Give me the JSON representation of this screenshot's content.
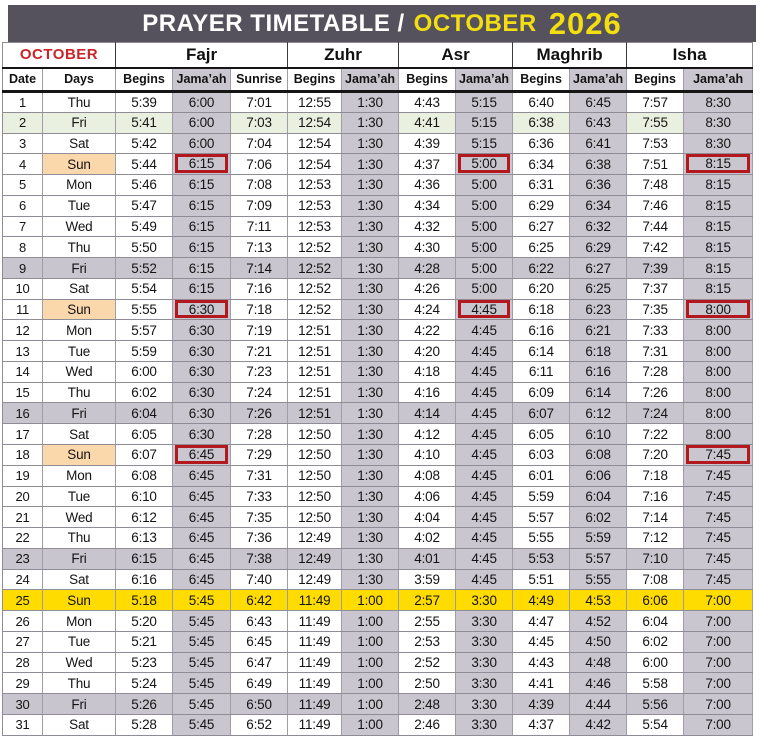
{
  "header": {
    "title_prefix": "PRAYER TIMETABLE /",
    "title_month": "OCTOBER",
    "title_year": "2026"
  },
  "colors": {
    "titlebar_bg": "#56525d",
    "title_text": "#ffffff",
    "title_accent_yellow": "#f3de10",
    "month_label_red": "#c9252b",
    "jamaah_column_gray": "#c9c6d0",
    "friday_gray": "#c8c5cf",
    "friday_green": "#e9f0e0",
    "sunday_peach": "#fbd8ac",
    "dst_row_yellow": "#ffdc00",
    "change_box_red": "#b2191f"
  },
  "table": {
    "month_label": "OCTOBER",
    "groups": [
      {
        "label": "Fajr",
        "span": 3
      },
      {
        "label": "Zuhr",
        "span": 2
      },
      {
        "label": "Asr",
        "span": 2
      },
      {
        "label": "Maghrib",
        "span": 2
      },
      {
        "label": "Isha",
        "span": 2
      }
    ],
    "sub_headers": [
      "Date",
      "Days",
      "Begins",
      "Jama’ah",
      "Sunrise",
      "Begins",
      "Jama’ah",
      "Begins",
      "Jama’ah",
      "Begins",
      "Jama’ah",
      "Begins",
      "Jama’ah"
    ],
    "jamaah_header_indices": [
      3,
      6,
      8,
      10,
      12
    ],
    "jamaah_time_indices": [
      1,
      4,
      6,
      8,
      10
    ],
    "rows": [
      {
        "date": "1",
        "day": "Thu",
        "highlight": "none",
        "boxes": [],
        "times": [
          "5:39",
          "6:00",
          "7:01",
          "12:55",
          "1:30",
          "4:43",
          "5:15",
          "6:40",
          "6:45",
          "7:57",
          "8:30"
        ]
      },
      {
        "date": "2",
        "day": "Fri",
        "highlight": "green",
        "boxes": [],
        "times": [
          "5:41",
          "6:00",
          "7:03",
          "12:54",
          "1:30",
          "4:41",
          "5:15",
          "6:38",
          "6:43",
          "7:55",
          "8:30"
        ]
      },
      {
        "date": "3",
        "day": "Sat",
        "highlight": "none",
        "boxes": [],
        "times": [
          "5:42",
          "6:00",
          "7:04",
          "12:54",
          "1:30",
          "4:39",
          "5:15",
          "6:36",
          "6:41",
          "7:53",
          "8:30"
        ]
      },
      {
        "date": "4",
        "day": "Sun",
        "highlight": "sun",
        "boxes": [
          1,
          6,
          10
        ],
        "times": [
          "5:44",
          "6:15",
          "7:06",
          "12:54",
          "1:30",
          "4:37",
          "5:00",
          "6:34",
          "6:38",
          "7:51",
          "8:15"
        ]
      },
      {
        "date": "5",
        "day": "Mon",
        "highlight": "none",
        "boxes": [],
        "times": [
          "5:46",
          "6:15",
          "7:08",
          "12:53",
          "1:30",
          "4:36",
          "5:00",
          "6:31",
          "6:36",
          "7:48",
          "8:15"
        ]
      },
      {
        "date": "6",
        "day": "Tue",
        "highlight": "none",
        "boxes": [],
        "times": [
          "5:47",
          "6:15",
          "7:09",
          "12:53",
          "1:30",
          "4:34",
          "5:00",
          "6:29",
          "6:34",
          "7:46",
          "8:15"
        ]
      },
      {
        "date": "7",
        "day": "Wed",
        "highlight": "none",
        "boxes": [],
        "times": [
          "5:49",
          "6:15",
          "7:11",
          "12:53",
          "1:30",
          "4:32",
          "5:00",
          "6:27",
          "6:32",
          "7:44",
          "8:15"
        ]
      },
      {
        "date": "8",
        "day": "Thu",
        "highlight": "none",
        "boxes": [],
        "times": [
          "5:50",
          "6:15",
          "7:13",
          "12:52",
          "1:30",
          "4:30",
          "5:00",
          "6:25",
          "6:29",
          "7:42",
          "8:15"
        ]
      },
      {
        "date": "9",
        "day": "Fri",
        "highlight": "gray",
        "boxes": [],
        "times": [
          "5:52",
          "6:15",
          "7:14",
          "12:52",
          "1:30",
          "4:28",
          "5:00",
          "6:22",
          "6:27",
          "7:39",
          "8:15"
        ]
      },
      {
        "date": "10",
        "day": "Sat",
        "highlight": "none",
        "boxes": [],
        "times": [
          "5:54",
          "6:15",
          "7:16",
          "12:52",
          "1:30",
          "4:26",
          "5:00",
          "6:20",
          "6:25",
          "7:37",
          "8:15"
        ]
      },
      {
        "date": "11",
        "day": "Sun",
        "highlight": "sun",
        "boxes": [
          1,
          6,
          10
        ],
        "times": [
          "5:55",
          "6:30",
          "7:18",
          "12:52",
          "1:30",
          "4:24",
          "4:45",
          "6:18",
          "6:23",
          "7:35",
          "8:00"
        ]
      },
      {
        "date": "12",
        "day": "Mon",
        "highlight": "none",
        "boxes": [],
        "times": [
          "5:57",
          "6:30",
          "7:19",
          "12:51",
          "1:30",
          "4:22",
          "4:45",
          "6:16",
          "6:21",
          "7:33",
          "8:00"
        ]
      },
      {
        "date": "13",
        "day": "Tue",
        "highlight": "none",
        "boxes": [],
        "times": [
          "5:59",
          "6:30",
          "7:21",
          "12:51",
          "1:30",
          "4:20",
          "4:45",
          "6:14",
          "6:18",
          "7:31",
          "8:00"
        ]
      },
      {
        "date": "14",
        "day": "Wed",
        "highlight": "none",
        "boxes": [],
        "times": [
          "6:00",
          "6:30",
          "7:23",
          "12:51",
          "1:30",
          "4:18",
          "4:45",
          "6:11",
          "6:16",
          "7:28",
          "8:00"
        ]
      },
      {
        "date": "15",
        "day": "Thu",
        "highlight": "none",
        "boxes": [],
        "times": [
          "6:02",
          "6:30",
          "7:24",
          "12:51",
          "1:30",
          "4:16",
          "4:45",
          "6:09",
          "6:14",
          "7:26",
          "8:00"
        ]
      },
      {
        "date": "16",
        "day": "Fri",
        "highlight": "gray",
        "boxes": [],
        "times": [
          "6:04",
          "6:30",
          "7:26",
          "12:51",
          "1:30",
          "4:14",
          "4:45",
          "6:07",
          "6:12",
          "7:24",
          "8:00"
        ]
      },
      {
        "date": "17",
        "day": "Sat",
        "highlight": "none",
        "boxes": [],
        "times": [
          "6:05",
          "6:30",
          "7:28",
          "12:50",
          "1:30",
          "4:12",
          "4:45",
          "6:05",
          "6:10",
          "7:22",
          "8:00"
        ]
      },
      {
        "date": "18",
        "day": "Sun",
        "highlight": "sun",
        "boxes": [
          1,
          10
        ],
        "times": [
          "6:07",
          "6:45",
          "7:29",
          "12:50",
          "1:30",
          "4:10",
          "4:45",
          "6:03",
          "6:08",
          "7:20",
          "7:45"
        ]
      },
      {
        "date": "19",
        "day": "Mon",
        "highlight": "none",
        "boxes": [],
        "times": [
          "6:08",
          "6:45",
          "7:31",
          "12:50",
          "1:30",
          "4:08",
          "4:45",
          "6:01",
          "6:06",
          "7:18",
          "7:45"
        ]
      },
      {
        "date": "20",
        "day": "Tue",
        "highlight": "none",
        "boxes": [],
        "times": [
          "6:10",
          "6:45",
          "7:33",
          "12:50",
          "1:30",
          "4:06",
          "4:45",
          "5:59",
          "6:04",
          "7:16",
          "7:45"
        ]
      },
      {
        "date": "21",
        "day": "Wed",
        "highlight": "none",
        "boxes": [],
        "times": [
          "6:12",
          "6:45",
          "7:35",
          "12:50",
          "1:30",
          "4:04",
          "4:45",
          "5:57",
          "6:02",
          "7:14",
          "7:45"
        ]
      },
      {
        "date": "22",
        "day": "Thu",
        "highlight": "none",
        "boxes": [],
        "times": [
          "6:13",
          "6:45",
          "7:36",
          "12:49",
          "1:30",
          "4:02",
          "4:45",
          "5:55",
          "5:59",
          "7:12",
          "7:45"
        ]
      },
      {
        "date": "23",
        "day": "Fri",
        "highlight": "gray",
        "boxes": [],
        "times": [
          "6:15",
          "6:45",
          "7:38",
          "12:49",
          "1:30",
          "4:01",
          "4:45",
          "5:53",
          "5:57",
          "7:10",
          "7:45"
        ]
      },
      {
        "date": "24",
        "day": "Sat",
        "highlight": "none",
        "boxes": [],
        "times": [
          "6:16",
          "6:45",
          "7:40",
          "12:49",
          "1:30",
          "3:59",
          "4:45",
          "5:51",
          "5:55",
          "7:08",
          "7:45"
        ]
      },
      {
        "date": "25",
        "day": "Sun",
        "highlight": "yellow",
        "boxes": [],
        "times": [
          "5:18",
          "5:45",
          "6:42",
          "11:49",
          "1:00",
          "2:57",
          "3:30",
          "4:49",
          "4:53",
          "6:06",
          "7:00"
        ]
      },
      {
        "date": "26",
        "day": "Mon",
        "highlight": "none",
        "boxes": [],
        "times": [
          "5:20",
          "5:45",
          "6:43",
          "11:49",
          "1:00",
          "2:55",
          "3:30",
          "4:47",
          "4:52",
          "6:04",
          "7:00"
        ]
      },
      {
        "date": "27",
        "day": "Tue",
        "highlight": "none",
        "boxes": [],
        "times": [
          "5:21",
          "5:45",
          "6:45",
          "11:49",
          "1:00",
          "2:53",
          "3:30",
          "4:45",
          "4:50",
          "6:02",
          "7:00"
        ]
      },
      {
        "date": "28",
        "day": "Wed",
        "highlight": "none",
        "boxes": [],
        "times": [
          "5:23",
          "5:45",
          "6:47",
          "11:49",
          "1:00",
          "2:52",
          "3:30",
          "4:43",
          "4:48",
          "6:00",
          "7:00"
        ]
      },
      {
        "date": "29",
        "day": "Thu",
        "highlight": "none",
        "boxes": [],
        "times": [
          "5:24",
          "5:45",
          "6:49",
          "11:49",
          "1:00",
          "2:50",
          "3:30",
          "4:41",
          "4:46",
          "5:58",
          "7:00"
        ]
      },
      {
        "date": "30",
        "day": "Fri",
        "highlight": "gray",
        "boxes": [],
        "times": [
          "5:26",
          "5:45",
          "6:50",
          "11:49",
          "1:00",
          "2:48",
          "3:30",
          "4:39",
          "4:44",
          "5:56",
          "7:00"
        ]
      },
      {
        "date": "31",
        "day": "Sat",
        "highlight": "none",
        "boxes": [],
        "times": [
          "5:28",
          "5:45",
          "6:52",
          "11:49",
          "1:00",
          "2:46",
          "3:30",
          "4:37",
          "4:42",
          "5:54",
          "7:00"
        ]
      }
    ]
  }
}
